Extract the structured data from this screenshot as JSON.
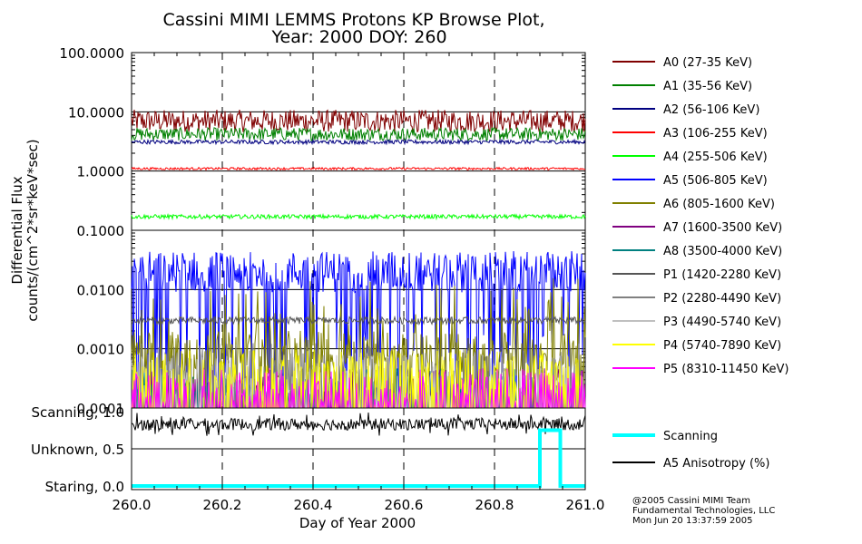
{
  "chart_data": {
    "type": "line",
    "title_line1": "Cassini MIMI LEMMS Protons KP Browse Plot,",
    "title_line2": "Year: 2000 DOY: 260",
    "ylabel_line1": "Differential Flux",
    "ylabel_line2": "counts/(cm^2*sr*keV*sec)",
    "xlabel": "Day of Year 2000",
    "xlim": [
      260.0,
      261.0
    ],
    "ylim_log": [
      0.0001,
      100.0
    ],
    "x_ticks": [
      {
        "value": 260.0,
        "label": "260.0"
      },
      {
        "value": 260.2,
        "label": "260.2"
      },
      {
        "value": 260.4,
        "label": "260.4"
      },
      {
        "value": 260.6,
        "label": "260.6"
      },
      {
        "value": 260.8,
        "label": "260.8"
      },
      {
        "value": 261.0,
        "label": "261.0"
      }
    ],
    "y_ticks": [
      {
        "value": 100.0,
        "label": "100.0000"
      },
      {
        "value": 10.0,
        "label": "10.0000"
      },
      {
        "value": 1.0,
        "label": "1.0000"
      },
      {
        "value": 0.1,
        "label": "0.1000"
      },
      {
        "value": 0.01,
        "label": "0.0100"
      },
      {
        "value": 0.001,
        "label": "0.0010"
      },
      {
        "value": 0.0001,
        "label": "0.0001"
      }
    ],
    "series": [
      {
        "name": "A0 (27-35 KeV)",
        "color": "#800000",
        "level": 7.0,
        "spread": 0.38,
        "mode": "noise"
      },
      {
        "name": "A1 (35-56 KeV)",
        "color": "#008000",
        "level": 4.2,
        "spread": 0.22,
        "mode": "noise"
      },
      {
        "name": "A2 (56-106 KeV)",
        "color": "#000080",
        "level": 3.1,
        "spread": 0.07,
        "mode": "noise"
      },
      {
        "name": "A3 (106-255 KeV)",
        "color": "#ff0000",
        "level": 1.1,
        "spread": 0.04,
        "mode": "noise"
      },
      {
        "name": "A4 (255-506 KeV)",
        "color": "#00ff00",
        "level": 0.17,
        "spread": 0.07,
        "mode": "noise"
      },
      {
        "name": "A5 (506-805 KeV)",
        "color": "#0000ff",
        "level": 0.02,
        "spread": 0.6,
        "mode": "dropouts"
      },
      {
        "name": "A6 (805-1600 KeV)",
        "color": "#808000",
        "level": 0.0008,
        "spread": 0.9,
        "mode": "spiky"
      },
      {
        "name": "A7 (1600-3500 KeV)",
        "color": "#800080",
        "level": 0.00012,
        "spread": 0.3,
        "mode": "sparse"
      },
      {
        "name": "A8 (3500-4000 KeV)",
        "color": "#008080",
        "level": 0.00012,
        "spread": 0.3,
        "mode": "sparse"
      },
      {
        "name": "P1 (1420-2280 KeV)",
        "color": "#555555",
        "level": 0.003,
        "spread": 0.12,
        "mode": "noise"
      },
      {
        "name": "P2 (2280-4490 KeV)",
        "color": "#808080",
        "level": 0.00025,
        "spread": 0.35,
        "mode": "sparse"
      },
      {
        "name": "P3 (4490-5740 KeV)",
        "color": "#c0c0c0",
        "level": 0.0002,
        "spread": 0.3,
        "mode": "sparse"
      },
      {
        "name": "P4 (5740-7890 KeV)",
        "color": "#ffff00",
        "level": 0.0002,
        "spread": 0.35,
        "mode": "sparse"
      },
      {
        "name": "P5 (8310-11450 KeV)",
        "color": "#ff00ff",
        "level": 0.00012,
        "spread": 0.3,
        "mode": "sparse"
      }
    ],
    "lower_panel": {
      "y_ticks": [
        {
          "value": 1.0,
          "label": "Scanning, 1.0"
        },
        {
          "value": 0.5,
          "label": "Unknown, 0.5"
        },
        {
          "value": 0.0,
          "label": "Staring, 0.0"
        }
      ],
      "ylim": [
        0.0,
        1.0
      ],
      "scanning": {
        "name": "Scanning",
        "color": "#00ffff",
        "segments": [
          [
            260.0,
            0.0
          ],
          [
            260.9,
            0.0
          ],
          [
            260.9,
            0.75
          ],
          [
            260.945,
            0.75
          ],
          [
            260.945,
            0.0
          ],
          [
            261.0,
            0.0
          ]
        ]
      },
      "anisotropy": {
        "name": "A5 Anisotropy (%)",
        "color": "#000000",
        "level": 0.83,
        "spread": 0.08
      }
    },
    "legend_placement": "right"
  },
  "footer": {
    "line1": "@2005 Cassini MIMI Team",
    "line2": "Fundamental Technologies, LLC",
    "line3": "Mon Jun 20 13:37:59 2005"
  }
}
